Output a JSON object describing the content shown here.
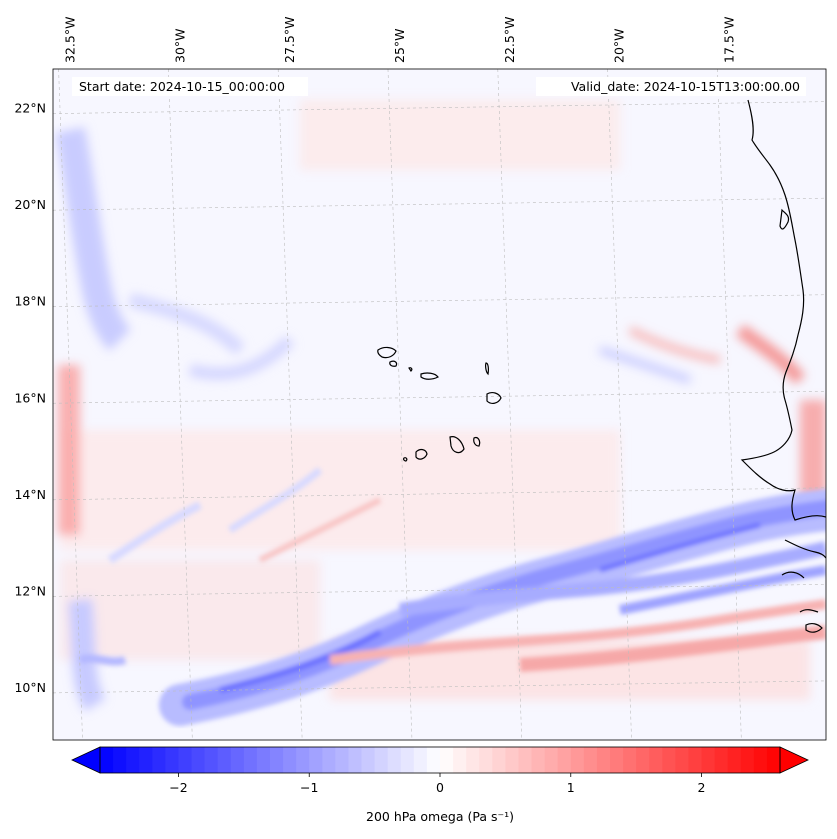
{
  "chart_data": {
    "type": "heatmap",
    "title": "",
    "start_date_label": "Start date: 2024-10-15_00:00:00",
    "valid_date_label": "Valid_date: 2024-10-15T13:00:00.00",
    "x_axis": {
      "position": "top",
      "range_lon": [
        -32.9,
        -15.3
      ],
      "ticks": [
        -32.5,
        -30,
        -27.5,
        -25,
        -22.5,
        -20,
        -17.5
      ],
      "tick_labels": [
        "32.5°W",
        "30°W",
        "27.5°W",
        "25°W",
        "22.5°W",
        "20°W",
        "17.5°W"
      ]
    },
    "y_axis": {
      "position": "left",
      "range_lat": [
        8.9,
        22.8
      ],
      "ticks": [
        10,
        12,
        14,
        16,
        18,
        20,
        22
      ],
      "tick_labels": [
        "10°N",
        "12°N",
        "14°N",
        "16°N",
        "18°N",
        "20°N",
        "22°N"
      ]
    },
    "gridlines": true,
    "colorbar": {
      "label": "200 hPa omega (Pa s⁻¹)",
      "vmin": -2.6,
      "vmax": 2.6,
      "ticks": [
        -2,
        -1,
        0,
        1,
        2
      ],
      "tick_labels": [
        "−2",
        "−1",
        "0",
        "1",
        "2"
      ],
      "colormap": "bwr",
      "extend": "both",
      "n_levels": 52,
      "colors": {
        "low": "#0000ff",
        "mid": "#ffffff",
        "high": "#ff0000"
      }
    },
    "features": [
      {
        "name": "ascent band (negative omega)",
        "sign": "negative",
        "value_approx": -0.8,
        "path_lonlat": [
          [
            -30.5,
            9.6
          ],
          [
            -28,
            10.0
          ],
          [
            -26,
            10.8
          ],
          [
            -24,
            11.4
          ],
          [
            -22,
            12.0
          ],
          [
            -20,
            12.4
          ],
          [
            -18,
            13.0
          ],
          [
            -16,
            13.4
          ]
        ]
      },
      {
        "name": "secondary ascent band",
        "sign": "negative",
        "value_approx": -0.6,
        "path_lonlat": [
          [
            -25,
            11.0
          ],
          [
            -22,
            11.4
          ],
          [
            -19.5,
            11.9
          ],
          [
            -17.5,
            12.2
          ],
          [
            -15.6,
            12.6
          ]
        ]
      },
      {
        "name": "western coastal descent strip",
        "sign": "positive",
        "value_approx": 0.5,
        "path_lonlat": [
          [
            -32.7,
            14.2
          ],
          [
            -32.7,
            15.5
          ],
          [
            -32.7,
            16.5
          ]
        ]
      },
      {
        "name": "African coast descent",
        "sign": "positive",
        "value_approx": 0.6,
        "path_lonlat": [
          [
            -15.6,
            15.0
          ],
          [
            -15.6,
            16.0
          ],
          [
            -15.9,
            17.0
          ]
        ]
      }
    ],
    "coastlines": [
      "Cape Verde islands",
      "West African coast"
    ]
  }
}
